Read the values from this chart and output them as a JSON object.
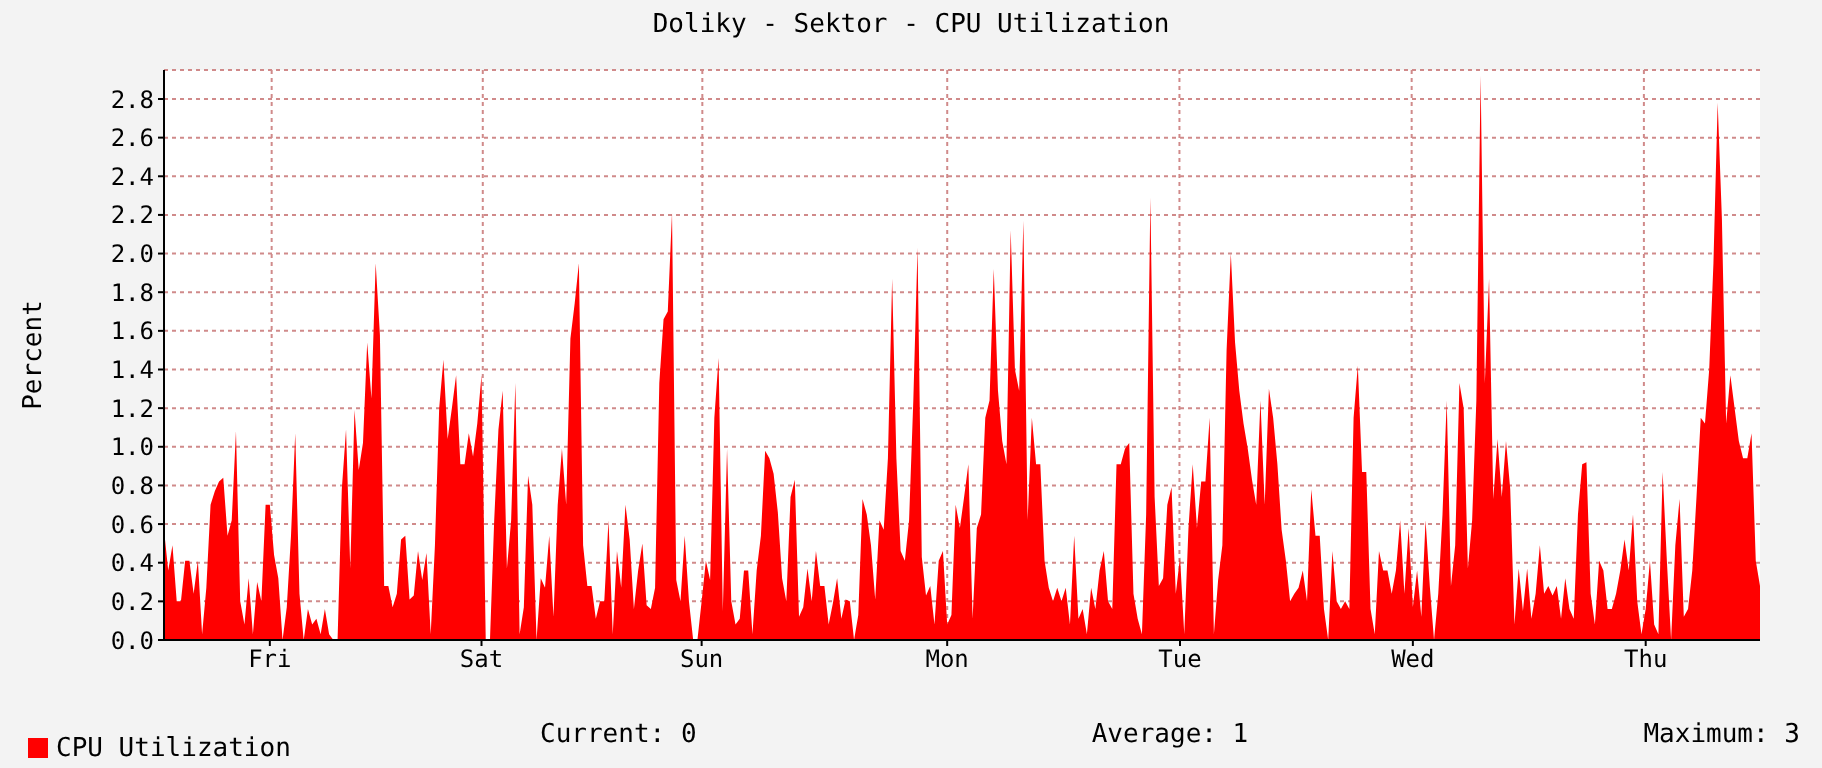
{
  "chart_data": {
    "type": "area",
    "title": "Doliky - Sektor - CPU Utilization",
    "ylabel": "Percent",
    "categories": [
      null,
      null,
      null,
      null,
      null,
      null,
      null,
      null,
      null,
      null,
      null,
      null,
      null,
      null,
      null,
      null,
      null,
      null,
      null,
      null,
      null,
      null,
      null,
      null,
      null,
      "Fri",
      null,
      null,
      null,
      null,
      null,
      null,
      null,
      null,
      null,
      null,
      null,
      null,
      null,
      null,
      null,
      null,
      null,
      null,
      null,
      null,
      null,
      null,
      null,
      null,
      null,
      null,
      null,
      null,
      null,
      null,
      null,
      null,
      null,
      null,
      null,
      null,
      null,
      null,
      null,
      null,
      null,
      null,
      null,
      null,
      null,
      null,
      null,
      null,
      null,
      "Sat",
      null,
      null,
      null,
      null,
      null,
      null,
      null,
      null,
      null,
      null,
      null,
      null,
      null,
      null,
      null,
      null,
      null,
      null,
      null,
      null,
      null,
      null,
      null,
      null,
      null,
      null,
      null,
      null,
      null,
      null,
      null,
      null,
      null,
      null,
      null,
      null,
      null,
      null,
      null,
      null,
      null,
      null,
      null,
      null,
      null,
      null,
      null,
      null,
      null,
      null,
      null,
      "Sun",
      null,
      null,
      null,
      null,
      null,
      null,
      null,
      null,
      null,
      null,
      null,
      null,
      null,
      null,
      null,
      null,
      null,
      null,
      null,
      null,
      null,
      null,
      null,
      null,
      null,
      null,
      null,
      null,
      null,
      null,
      null,
      null,
      null,
      null,
      null,
      null,
      null,
      null,
      null,
      null,
      null,
      null,
      null,
      null,
      null,
      null,
      null,
      null,
      null,
      null,
      null,
      null,
      null,
      null,
      null,
      null,
      null,
      "Mon",
      null,
      null,
      null,
      null,
      null,
      null,
      null,
      null,
      null,
      null,
      null,
      null,
      null,
      null,
      null,
      null,
      null,
      null,
      null,
      null,
      null,
      null,
      null,
      null,
      null,
      null,
      null,
      null,
      null,
      null,
      null,
      null,
      null,
      null,
      null,
      null,
      null,
      null,
      null,
      null,
      null,
      null,
      null,
      null,
      null,
      null,
      null,
      null,
      null,
      null,
      null,
      null,
      null,
      null,
      "Tue",
      null,
      null,
      null,
      null,
      null,
      null,
      null,
      null,
      null,
      null,
      null,
      null,
      null,
      null,
      null,
      null,
      null,
      null,
      null,
      null,
      null,
      null,
      null,
      null,
      null,
      null,
      null,
      null,
      null,
      null,
      null,
      null,
      null,
      null,
      null,
      null,
      null,
      null,
      null,
      null,
      null,
      null,
      null,
      null,
      null,
      null,
      null,
      null,
      null,
      null,
      null,
      null,
      null,
      null,
      "Wed",
      null,
      null,
      null,
      null,
      null,
      null,
      null,
      null,
      null,
      null,
      null,
      null,
      null,
      null,
      null,
      null,
      null,
      null,
      null,
      null,
      null,
      null,
      null,
      null,
      null,
      null,
      null,
      null,
      null,
      null,
      null,
      null,
      null,
      null,
      null,
      null,
      null,
      null,
      null,
      null,
      null,
      null,
      null,
      null,
      null,
      null,
      null,
      null,
      null,
      null,
      null,
      null,
      null,
      null,
      "Thu",
      null,
      null,
      null,
      null,
      null,
      null,
      null,
      null,
      null,
      null,
      null,
      null,
      null,
      null,
      null,
      null,
      null,
      null,
      null,
      null,
      null,
      null,
      null,
      null,
      null,
      null,
      null
    ],
    "ylim": [
      0,
      2.95
    ],
    "yticks": [
      {
        "value": 0,
        "label": "0.0"
      },
      0.2,
      0.4,
      0.6,
      0.8,
      {
        "value": 1,
        "label": "1.0"
      },
      1.2,
      1.4,
      1.6,
      1.8,
      {
        "value": 2,
        "label": "2.0"
      },
      2.2,
      2.4,
      2.6,
      2.8
    ],
    "grid": true,
    "legend": "bottom left",
    "annotations": [
      "Current: 0",
      "Average: 1",
      "Maximum: 3"
    ],
    "series": [
      {
        "name": "CPU Utilization",
        "color": "#ff0000",
        "values": [
          0.57,
          0.36,
          0.49,
          0.2,
          0.2,
          0.41,
          0.41,
          0.24,
          0.41,
          0.03,
          0.27,
          0.7,
          0.77,
          0.82,
          0.84,
          0.54,
          0.62,
          1.08,
          0.2,
          0.08,
          0.32,
          0.03,
          0.3,
          0.2,
          0.7,
          0.7,
          0.44,
          0.32,
          0,
          0.17,
          0.54,
          1.07,
          0.24,
          0,
          0.16,
          0.08,
          0.11,
          0.03,
          0.16,
          0.03,
          0,
          0,
          0.78,
          1.09,
          0.37,
          1.19,
          0.88,
          1.02,
          1.54,
          1.25,
          1.95,
          1.58,
          0.28,
          0.28,
          0.17,
          0.24,
          0.52,
          0.54,
          0.21,
          0.23,
          0.46,
          0.31,
          0.45,
          0.03,
          0.49,
          1.2,
          1.45,
          1.04,
          1.2,
          1.37,
          0.91,
          0.91,
          1.07,
          0.95,
          1.12,
          1.37,
          0,
          0,
          0.62,
          1.09,
          1.29,
          0.37,
          0.62,
          1.33,
          0.03,
          0.17,
          0.85,
          0.7,
          0,
          0.32,
          0.27,
          0.54,
          0.12,
          0.7,
          0.99,
          0.7,
          1.56,
          1.74,
          1.95,
          0.49,
          0.28,
          0.28,
          0.11,
          0.2,
          0.2,
          0.62,
          0.03,
          0.46,
          0.27,
          0.7,
          0.52,
          0.16,
          0.36,
          0.5,
          0.18,
          0.16,
          0.27,
          1.33,
          1.66,
          1.7,
          2.21,
          0.31,
          0.2,
          0.54,
          0.2,
          0,
          0,
          0.2,
          0.41,
          0.31,
          1.15,
          1.46,
          0.15,
          0.99,
          0.2,
          0.08,
          0.11,
          0.36,
          0.36,
          0.03,
          0.36,
          0.54,
          0.98,
          0.94,
          0.86,
          0.66,
          0.32,
          0.2,
          0.74,
          0.83,
          0.12,
          0.17,
          0.37,
          0.2,
          0.46,
          0.28,
          0.28,
          0.08,
          0.19,
          0.32,
          0.11,
          0.21,
          0.2,
          0,
          0.13,
          0.73,
          0.65,
          0.49,
          0.21,
          0.62,
          0.57,
          0.94,
          1.87,
          0.94,
          0.46,
          0.41,
          0.62,
          1.24,
          2.03,
          0.43,
          0.23,
          0.28,
          0.08,
          0.41,
          0.46,
          0.08,
          0.13,
          0.7,
          0.58,
          0.74,
          0.91,
          0.11,
          0.58,
          0.65,
          1.15,
          1.24,
          1.92,
          1.29,
          1.03,
          0.91,
          2.12,
          1.4,
          1.29,
          2.17,
          0.62,
          1.15,
          0.91,
          0.91,
          0.41,
          0.27,
          0.2,
          0.27,
          0.2,
          0.27,
          0.08,
          0.54,
          0.11,
          0.16,
          0.03,
          0.27,
          0.16,
          0.36,
          0.46,
          0.2,
          0.16,
          0.91,
          0.91,
          0.99,
          1.02,
          0.24,
          0.11,
          0.03,
          0.65,
          2.29,
          0.74,
          0.28,
          0.32,
          0.7,
          0.79,
          0.24,
          0.43,
          0.03,
          0.58,
          0.91,
          0.58,
          0.82,
          0.82,
          1.15,
          0.03,
          0.31,
          0.49,
          1.5,
          2.0,
          1.54,
          1.29,
          1.12,
          0.99,
          0.83,
          0.7,
          1.24,
          0.7,
          1.3,
          1.15,
          0.91,
          0.57,
          0.41,
          0.2,
          0.24,
          0.27,
          0.36,
          0.2,
          0.78,
          0.54,
          0.54,
          0.16,
          0,
          0.46,
          0.2,
          0.16,
          0.2,
          0.16,
          1.15,
          1.42,
          0.87,
          0.87,
          0.16,
          0.03,
          0.46,
          0.36,
          0.36,
          0.24,
          0.36,
          0.62,
          0.24,
          0.58,
          0.17,
          0.36,
          0.12,
          0.62,
          0.28,
          0,
          0.24,
          0.65,
          1.24,
          0.28,
          0.49,
          1.33,
          1.2,
          0.37,
          0.62,
          1.24,
          2.92,
          1.33,
          1.87,
          0.73,
          1.04,
          0.74,
          1.03,
          0.78,
          0.08,
          0.37,
          0.15,
          0.37,
          0.11,
          0.24,
          0.49,
          0.24,
          0.28,
          0.23,
          0.28,
          0.11,
          0.32,
          0.16,
          0.11,
          0.65,
          0.91,
          0.92,
          0.24,
          0.08,
          0.41,
          0.36,
          0.16,
          0.16,
          0.24,
          0.36,
          0.52,
          0.36,
          0.65,
          0.2,
          0.03,
          0.16,
          0.41,
          0.08,
          0.03,
          0.87,
          0.41,
          0,
          0.49,
          0.73,
          0.12,
          0.16,
          0.36,
          0.74,
          1.15,
          1.12,
          1.4,
          1.95,
          2.78,
          2.18,
          1.12,
          1.37,
          1.2,
          1.03,
          0.94,
          0.94,
          1.07,
          0.41,
          0.28
        ]
      }
    ]
  }
}
